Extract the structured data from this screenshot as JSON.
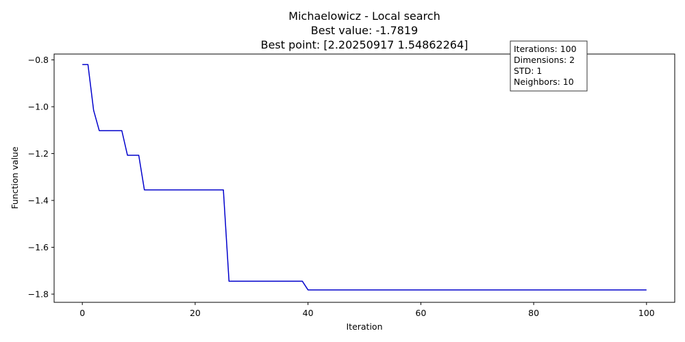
{
  "chart_data": {
    "type": "line",
    "title_lines": [
      "Michaelowicz - Local search",
      "Best value: -1.7819",
      "Best point: [2.20250917 1.54862264]"
    ],
    "xlabel": "Iteration",
    "ylabel": "Function value",
    "xlim": [
      -5,
      105
    ],
    "ylim": [
      -1.835,
      -0.775
    ],
    "x_ticks": [
      0,
      20,
      40,
      60,
      80,
      100
    ],
    "x_tick_labels": [
      "0",
      "20",
      "40",
      "60",
      "80",
      "100"
    ],
    "y_ticks": [
      -0.8,
      -1.0,
      -1.2,
      -1.4,
      -1.6,
      -1.8
    ],
    "y_tick_labels": [
      "−0.8",
      "−1.0",
      "−1.2",
      "−1.4",
      "−1.6",
      "−1.8"
    ],
    "grid": false,
    "series": [
      {
        "color": "#0000cc",
        "x": [
          0,
          1,
          2,
          3,
          4,
          5,
          6,
          7,
          8,
          9,
          10,
          11,
          12,
          13,
          14,
          15,
          16,
          17,
          18,
          19,
          20,
          21,
          22,
          23,
          24,
          25,
          26,
          27,
          28,
          29,
          30,
          31,
          32,
          33,
          34,
          35,
          36,
          37,
          38,
          39,
          40,
          41,
          42,
          43,
          44,
          45,
          46,
          47,
          48,
          49,
          50,
          51,
          52,
          53,
          54,
          55,
          56,
          57,
          58,
          59,
          60,
          61,
          62,
          63,
          64,
          65,
          66,
          67,
          68,
          69,
          70,
          71,
          72,
          73,
          74,
          75,
          76,
          77,
          78,
          79,
          80,
          81,
          82,
          83,
          84,
          85,
          86,
          87,
          88,
          89,
          90,
          91,
          92,
          93,
          94,
          95,
          96,
          97,
          98,
          99,
          100
        ],
        "y": [
          -0.82,
          -0.82,
          -1.015,
          -1.102,
          -1.102,
          -1.102,
          -1.102,
          -1.102,
          -1.207,
          -1.207,
          -1.207,
          -1.355,
          -1.355,
          -1.355,
          -1.355,
          -1.355,
          -1.355,
          -1.355,
          -1.355,
          -1.355,
          -1.355,
          -1.355,
          -1.355,
          -1.355,
          -1.355,
          -1.355,
          -1.745,
          -1.745,
          -1.745,
          -1.745,
          -1.745,
          -1.745,
          -1.745,
          -1.745,
          -1.745,
          -1.745,
          -1.745,
          -1.745,
          -1.745,
          -1.745,
          -1.7819,
          -1.7819,
          -1.7819,
          -1.7819,
          -1.7819,
          -1.7819,
          -1.7819,
          -1.7819,
          -1.7819,
          -1.7819,
          -1.7819,
          -1.7819,
          -1.7819,
          -1.7819,
          -1.7819,
          -1.7819,
          -1.7819,
          -1.7819,
          -1.7819,
          -1.7819,
          -1.7819,
          -1.7819,
          -1.7819,
          -1.7819,
          -1.7819,
          -1.7819,
          -1.7819,
          -1.7819,
          -1.7819,
          -1.7819,
          -1.7819,
          -1.7819,
          -1.7819,
          -1.7819,
          -1.7819,
          -1.7819,
          -1.7819,
          -1.7819,
          -1.7819,
          -1.7819,
          -1.7819,
          -1.7819,
          -1.7819,
          -1.7819,
          -1.7819,
          -1.7819,
          -1.7819,
          -1.7819,
          -1.7819,
          -1.7819,
          -1.7819,
          -1.7819,
          -1.7819,
          -1.7819,
          -1.7819,
          -1.7819,
          -1.7819,
          -1.7819,
          -1.7819,
          -1.7819,
          -1.7819
        ]
      }
    ],
    "annotation": {
      "placement": "top-right",
      "lines": [
        "Iterations: 100",
        "Dimensions: 2",
        "STD: 1",
        "Neighbors: 10"
      ]
    }
  }
}
